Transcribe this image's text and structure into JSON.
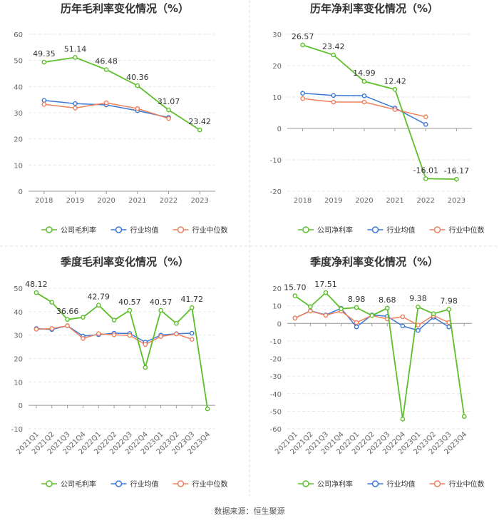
{
  "source": "数据来源：恒生聚源",
  "colors": {
    "company": "#5cbf2a",
    "industry_avg": "#3a78d8",
    "industry_median": "#f07f5c"
  },
  "chart_data": [
    {
      "type": "line",
      "title": "历年毛利率变化情况（%）",
      "categories": [
        "2018",
        "2019",
        "2020",
        "2021",
        "2022",
        "2023"
      ],
      "ylim": [
        0,
        60
      ],
      "yticks": [
        0,
        10,
        20,
        30,
        40,
        50,
        60
      ],
      "grid": true,
      "legend": "bottom",
      "series": [
        {
          "name": "公司毛利率",
          "values": [
            49.35,
            51.14,
            46.48,
            40.36,
            31.07,
            23.42
          ],
          "labels": [
            "49.35",
            "51.14",
            "46.48",
            "40.36",
            "31.07",
            "23.42"
          ]
        },
        {
          "name": "行业均值",
          "values": [
            34.7,
            33.5,
            33.0,
            30.8,
            28.2,
            null
          ]
        },
        {
          "name": "行业中位数",
          "values": [
            33.2,
            31.8,
            33.8,
            31.6,
            27.8,
            null
          ]
        }
      ]
    },
    {
      "type": "line",
      "title": "历年净利率变化情况（%）",
      "categories": [
        "2018",
        "2019",
        "2020",
        "2021",
        "2022",
        "2023"
      ],
      "ylim": [
        -20,
        30
      ],
      "yticks": [
        -20,
        -10,
        0,
        10,
        20,
        30
      ],
      "grid": true,
      "legend": "bottom",
      "series": [
        {
          "name": "公司净利率",
          "values": [
            26.57,
            23.42,
            14.99,
            12.42,
            -16.01,
            -16.17
          ],
          "labels": [
            "26.57",
            "23.42",
            "14.99",
            "12.42",
            "-16.01",
            "-16.17"
          ]
        },
        {
          "name": "行业均值",
          "values": [
            11.2,
            10.5,
            10.4,
            6.5,
            1.3,
            null
          ]
        },
        {
          "name": "行业中位数",
          "values": [
            9.5,
            8.4,
            8.4,
            6.0,
            3.7,
            null
          ]
        }
      ]
    },
    {
      "type": "line",
      "title": "季度毛利率变化情况（%）",
      "categories": [
        "2021Q1",
        "2021Q2",
        "2021Q3",
        "2021Q4",
        "2022Q1",
        "2022Q2",
        "2022Q3",
        "2022Q4",
        "2023Q1",
        "2023Q2",
        "2023Q3",
        "2023Q4"
      ],
      "ylim": [
        -10,
        50
      ],
      "yticks": [
        -10,
        0,
        10,
        20,
        30,
        40,
        50
      ],
      "grid": true,
      "legend": "bottom",
      "series": [
        {
          "name": "公司毛利率",
          "values": [
            48.12,
            44.0,
            36.66,
            37.6,
            42.79,
            36.4,
            40.57,
            16.2,
            40.57,
            35.0,
            41.72,
            -1.5
          ],
          "labels": [
            "48.12",
            "",
            "36.66",
            "",
            "42.79",
            "",
            "40.57",
            "",
            "40.57",
            "",
            "41.72",
            ""
          ]
        },
        {
          "name": "行业均值",
          "values": [
            32.8,
            32.4,
            34.0,
            29.6,
            30.2,
            30.8,
            30.7,
            27.0,
            30.0,
            30.6,
            30.8,
            null
          ]
        },
        {
          "name": "行业中位数",
          "values": [
            32.5,
            32.8,
            34.0,
            28.6,
            30.6,
            30.1,
            29.9,
            26.0,
            29.4,
            30.5,
            28.2,
            null
          ]
        }
      ]
    },
    {
      "type": "line",
      "title": "季度净利率变化情况（%）",
      "categories": [
        "2021Q1",
        "2021Q2",
        "2021Q3",
        "2021Q4",
        "2022Q1",
        "2022Q2",
        "2022Q3",
        "2022Q4",
        "2023Q1",
        "2023Q2",
        "2023Q3",
        "2023Q4"
      ],
      "ylim": [
        -60,
        20
      ],
      "yticks": [
        -60,
        -50,
        -40,
        -30,
        -20,
        -10,
        0,
        10,
        20
      ],
      "grid": true,
      "legend": "bottom",
      "series": [
        {
          "name": "公司净利率",
          "values": [
            15.7,
            9.5,
            17.51,
            8.3,
            8.98,
            4.5,
            8.68,
            -54.5,
            9.38,
            5.5,
            7.98,
            -53.0
          ],
          "labels": [
            "15.70",
            "",
            "17.51",
            "",
            "8.98",
            "",
            "8.68",
            "",
            "9.38",
            "",
            "7.98",
            ""
          ]
        },
        {
          "name": "行业均值",
          "values": [
            3.0,
            7.2,
            4.8,
            8.6,
            -2.0,
            4.8,
            4.0,
            -1.5,
            -4.0,
            3.5,
            -2.0,
            null
          ]
        },
        {
          "name": "行业中位数",
          "values": [
            3.0,
            7.0,
            4.6,
            7.0,
            0.5,
            4.5,
            2.5,
            3.8,
            -1.0,
            4.5,
            0.5,
            null
          ]
        }
      ]
    }
  ]
}
